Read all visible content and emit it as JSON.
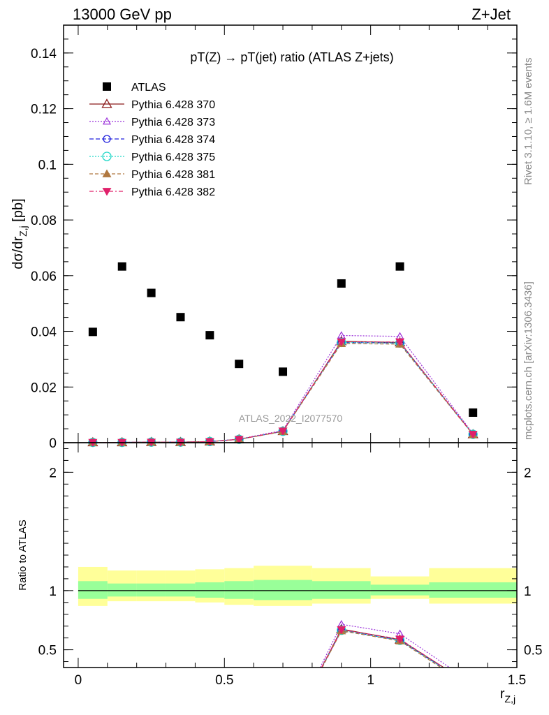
{
  "header": {
    "left": "13000 GeV pp",
    "right": "Z+Jet"
  },
  "side_labels": {
    "rivet": "Rivet 3.1.10, ≥ 1.6M events",
    "mcplots": "mcplots.cern.ch [arXiv:1306.3436]"
  },
  "colors": {
    "atlas": "#000000",
    "p370": "#8b1a1a",
    "p373": "#9b30d9",
    "p374": "#2222dd",
    "p375": "#22d8c8",
    "p381": "#b07840",
    "p382": "#e0206a",
    "band_inner": "#99ff99",
    "band_outer": "#ffff99"
  },
  "chart_data": [
    {
      "type": "scatter",
      "title": "pT(Z) → pT(jet) ratio (ATLAS Z+jets)",
      "ylabel": "dσ/dr_{Z,j} [pb]",
      "watermark": "ATLAS_2022_I2077570",
      "xlim": [
        -0.05,
        1.5
      ],
      "ylim": [
        0,
        0.15
      ],
      "yticks": [
        {
          "v": 0,
          "label": "0"
        },
        {
          "v": 0.02,
          "label": "0.02"
        },
        {
          "v": 0.04,
          "label": "0.04"
        },
        {
          "v": 0.06,
          "label": "0.06"
        },
        {
          "v": 0.08,
          "label": "0.08"
        },
        {
          "v": 0.1,
          "label": "0.1"
        },
        {
          "v": 0.12,
          "label": "0.12"
        },
        {
          "v": 0.14,
          "label": "0.14"
        }
      ],
      "x": [
        0.05,
        0.15,
        0.25,
        0.35,
        0.45,
        0.55,
        0.7,
        0.9,
        1.1,
        1.35
      ],
      "series": [
        {
          "name": "ATLAS",
          "key": "atlas",
          "marker": "square",
          "dash": "",
          "values": [
            0.0398,
            0.0633,
            0.0538,
            0.0451,
            0.0386,
            0.0283,
            0.0255,
            0.0572,
            0.0633,
            0.0108
          ]
        },
        {
          "name": "Pythia 6.428 370",
          "key": "p370",
          "marker": "triangle-open",
          "dash": "",
          "values": [
            0.0001,
            0.0001,
            0.0002,
            0.0002,
            0.0004,
            0.0012,
            0.0041,
            0.0364,
            0.036,
            0.003
          ]
        },
        {
          "name": "Pythia 6.428 373",
          "key": "p373",
          "marker": "triangle-open-small",
          "dash": "2,2",
          "values": [
            0.0001,
            0.0001,
            0.0002,
            0.0002,
            0.0004,
            0.0013,
            0.0044,
            0.0385,
            0.0382,
            0.0032
          ]
        },
        {
          "name": "Pythia 6.428 374",
          "key": "p374",
          "marker": "circle-open",
          "dash": "6,3",
          "values": [
            0.0001,
            0.0001,
            0.0002,
            0.0002,
            0.0004,
            0.0012,
            0.0041,
            0.036,
            0.0358,
            0.003
          ]
        },
        {
          "name": "Pythia 6.428 375",
          "key": "p375",
          "marker": "circle-open-large",
          "dash": "2,2",
          "values": [
            0.0001,
            0.0001,
            0.0002,
            0.0002,
            0.0004,
            0.0012,
            0.0041,
            0.036,
            0.0358,
            0.003
          ]
        },
        {
          "name": "Pythia 6.428 381",
          "key": "p381",
          "marker": "triangle-filled",
          "dash": "5,3",
          "values": [
            0.0001,
            0.0001,
            0.0002,
            0.0002,
            0.0004,
            0.0012,
            0.004,
            0.0356,
            0.0354,
            0.0029
          ]
        },
        {
          "name": "Pythia 6.428 382",
          "key": "p382",
          "marker": "triangle-down-filled",
          "dash": "6,3,2,3",
          "values": [
            0.0001,
            0.0001,
            0.0002,
            0.0002,
            0.0004,
            0.0012,
            0.0042,
            0.0362,
            0.0362,
            0.003
          ]
        }
      ]
    },
    {
      "type": "line",
      "ylabel": "Ratio to ATLAS",
      "xlabel": "r_{Z,j}",
      "xlim": [
        -0.05,
        1.5
      ],
      "ylim": [
        0.35,
        2.25
      ],
      "xticks": [
        {
          "v": 0,
          "label": "0"
        },
        {
          "v": 0.5,
          "label": "0.5"
        },
        {
          "v": 1,
          "label": "1"
        },
        {
          "v": 1.5,
          "label": "1.5"
        }
      ],
      "yticks": [
        {
          "v": 0.5,
          "label": "0.5"
        },
        {
          "v": 1,
          "label": "1"
        },
        {
          "v": 2,
          "label": "2"
        }
      ],
      "bins": [
        {
          "lo": 0.0,
          "hi": 0.1,
          "inner": [
            0.93,
            1.08
          ],
          "outer": [
            0.87,
            1.2
          ]
        },
        {
          "lo": 0.1,
          "hi": 0.2,
          "inner": [
            0.95,
            1.06
          ],
          "outer": [
            0.91,
            1.17
          ]
        },
        {
          "lo": 0.2,
          "hi": 0.3,
          "inner": [
            0.95,
            1.06
          ],
          "outer": [
            0.91,
            1.17
          ]
        },
        {
          "lo": 0.3,
          "hi": 0.4,
          "inner": [
            0.95,
            1.06
          ],
          "outer": [
            0.91,
            1.17
          ]
        },
        {
          "lo": 0.4,
          "hi": 0.5,
          "inner": [
            0.94,
            1.07
          ],
          "outer": [
            0.9,
            1.18
          ]
        },
        {
          "lo": 0.5,
          "hi": 0.6,
          "inner": [
            0.93,
            1.08
          ],
          "outer": [
            0.88,
            1.19
          ]
        },
        {
          "lo": 0.6,
          "hi": 0.8,
          "inner": [
            0.92,
            1.09
          ],
          "outer": [
            0.87,
            1.21
          ]
        },
        {
          "lo": 0.8,
          "hi": 1.0,
          "inner": [
            0.93,
            1.08
          ],
          "outer": [
            0.89,
            1.19
          ]
        },
        {
          "lo": 1.0,
          "hi": 1.2,
          "inner": [
            0.96,
            1.05
          ],
          "outer": [
            0.93,
            1.12
          ]
        },
        {
          "lo": 1.2,
          "hi": 1.5,
          "inner": [
            0.94,
            1.07
          ],
          "outer": [
            0.89,
            1.19
          ]
        }
      ],
      "series": [
        {
          "name": "Pythia 6.428 370",
          "key": "p370",
          "marker": "triangle-open",
          "dash": "",
          "x": [
            0.8325,
            0.9,
            1.1,
            1.25
          ],
          "values": [
            0.35,
            0.675,
            0.585,
            0.35
          ]
        },
        {
          "name": "Pythia 6.428 373",
          "key": "p373",
          "marker": "triangle-open-small",
          "dash": "2,2",
          "x": [
            0.8275,
            0.9,
            1.1,
            1.27
          ],
          "values": [
            0.35,
            0.715,
            0.635,
            0.35
          ]
        },
        {
          "name": "Pythia 6.428 374",
          "key": "p374",
          "marker": "circle-open",
          "dash": "6,3",
          "x": [
            0.8335,
            0.9,
            1.1,
            1.245
          ],
          "values": [
            0.35,
            0.665,
            0.58,
            0.35
          ]
        },
        {
          "name": "Pythia 6.428 375",
          "key": "p375",
          "marker": "circle-open-large",
          "dash": "2,2",
          "x": [
            0.8335,
            0.9,
            1.1,
            1.245
          ],
          "values": [
            0.35,
            0.665,
            0.58,
            0.35
          ]
        },
        {
          "name": "Pythia 6.428 381",
          "key": "p381",
          "marker": "triangle-filled",
          "dash": "5,3",
          "x": [
            0.8345,
            0.9,
            1.1,
            1.24
          ],
          "values": [
            0.35,
            0.66,
            0.575,
            0.35
          ]
        },
        {
          "name": "Pythia 6.428 382",
          "key": "p382",
          "marker": "triangle-down-filled",
          "dash": "6,3,2,3",
          "x": [
            0.832,
            0.9,
            1.1,
            1.25
          ],
          "values": [
            0.35,
            0.67,
            0.59,
            0.35
          ]
        }
      ],
      "reference": 1
    }
  ]
}
